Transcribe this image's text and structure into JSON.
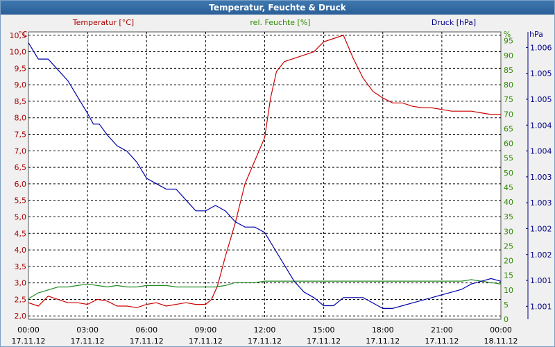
{
  "window": {
    "title": "Temperatur, Feuchte & Druck"
  },
  "chart_data": {
    "type": "line",
    "title": "Temperatur, Feuchte & Druck",
    "x_ticks": [
      {
        "time": "00:00",
        "date": "17.11.12",
        "hour": 0
      },
      {
        "time": "03:00",
        "date": "17.11.12",
        "hour": 3
      },
      {
        "time": "06:00",
        "date": "17.11.12",
        "hour": 6
      },
      {
        "time": "09:00",
        "date": "17.11.12",
        "hour": 9
      },
      {
        "time": "12:00",
        "date": "17.11.12",
        "hour": 12
      },
      {
        "time": "15:00",
        "date": "17.11.12",
        "hour": 15
      },
      {
        "time": "18:00",
        "date": "17.11.12",
        "hour": 18
      },
      {
        "time": "21:00",
        "date": "17.11.12",
        "hour": 21
      },
      {
        "time": "00:00",
        "date": "18.11.12",
        "hour": 24
      }
    ],
    "xlim": [
      0,
      24
    ],
    "axes": {
      "temperature": {
        "unit": "°C",
        "ylim": [
          1.9,
          10.6
        ],
        "color": "#aa0000",
        "ticks": [
          "2,0",
          "2,5",
          "3,0",
          "3,5",
          "4,0",
          "4,5",
          "5,0",
          "5,5",
          "6,0",
          "6,5",
          "7,0",
          "7,5",
          "8,0",
          "8,5",
          "9,0",
          "9,5",
          "10,0",
          "10,5"
        ]
      },
      "humidity": {
        "unit": "%",
        "ylim": [
          0,
          98
        ],
        "color": "#2e8b00",
        "ticks": [
          "0",
          "5",
          "10",
          "15",
          "20",
          "25",
          "30",
          "35",
          "40",
          "45",
          "50",
          "55",
          "60",
          "65",
          "70",
          "75",
          "80",
          "85",
          "90",
          "95"
        ]
      },
      "pressure": {
        "unit": "hPa",
        "ylim": [
          1000.9,
          1006.2
        ],
        "color": "#000088",
        "ticks": [
          "1.001",
          "1.001",
          "1.002",
          "1.002",
          "1.003",
          "1.003",
          "1.004",
          "1.004",
          "1.005",
          "1.005",
          "1.006"
        ]
      }
    },
    "legend": [
      "Temperatur [°C]",
      "rel. Feuchte [%]",
      "Druck [hPa]"
    ],
    "series": [
      {
        "name": "Temperatur [°C]",
        "axis": "temperature",
        "color": "#cc0000",
        "points": [
          [
            0,
            2.4
          ],
          [
            0.5,
            2.3
          ],
          [
            1,
            2.6
          ],
          [
            1.5,
            2.5
          ],
          [
            2,
            2.4
          ],
          [
            2.5,
            2.4
          ],
          [
            3,
            2.35
          ],
          [
            3.5,
            2.5
          ],
          [
            4,
            2.45
          ],
          [
            4.5,
            2.3
          ],
          [
            5,
            2.3
          ],
          [
            5.5,
            2.25
          ],
          [
            6,
            2.35
          ],
          [
            6.5,
            2.4
          ],
          [
            7,
            2.3
          ],
          [
            7.5,
            2.35
          ],
          [
            8,
            2.4
          ],
          [
            8.5,
            2.35
          ],
          [
            9,
            2.35
          ],
          [
            9.3,
            2.5
          ],
          [
            9.6,
            2.9
          ],
          [
            10,
            3.8
          ],
          [
            10.5,
            4.8
          ],
          [
            11,
            6.0
          ],
          [
            11.5,
            6.7
          ],
          [
            12,
            7.4
          ],
          [
            12.3,
            8.6
          ],
          [
            12.6,
            9.4
          ],
          [
            13,
            9.7
          ],
          [
            13.5,
            9.8
          ],
          [
            14,
            9.9
          ],
          [
            14.5,
            10.0
          ],
          [
            15,
            10.3
          ],
          [
            15.5,
            10.4
          ],
          [
            16,
            10.5
          ],
          [
            16.5,
            9.8
          ],
          [
            17,
            9.2
          ],
          [
            17.5,
            8.8
          ],
          [
            18,
            8.6
          ],
          [
            18.5,
            8.45
          ],
          [
            19,
            8.45
          ],
          [
            19.5,
            8.35
          ],
          [
            20,
            8.3
          ],
          [
            20.5,
            8.3
          ],
          [
            21,
            8.25
          ],
          [
            21.5,
            8.2
          ],
          [
            22,
            8.2
          ],
          [
            22.5,
            8.2
          ],
          [
            23,
            8.15
          ],
          [
            23.5,
            8.1
          ],
          [
            24,
            8.1
          ]
        ]
      },
      {
        "name": "rel. Feuchte [%]",
        "axis": "humidity",
        "color": "#228b22",
        "points": [
          [
            0,
            7
          ],
          [
            0.5,
            9
          ],
          [
            1,
            10
          ],
          [
            1.5,
            11
          ],
          [
            2,
            11
          ],
          [
            2.5,
            11.5
          ],
          [
            3,
            12
          ],
          [
            3.5,
            11.5
          ],
          [
            4,
            11
          ],
          [
            4.5,
            11.5
          ],
          [
            5,
            11
          ],
          [
            5.5,
            11
          ],
          [
            6,
            11.5
          ],
          [
            6.5,
            11.5
          ],
          [
            7,
            11.5
          ],
          [
            7.5,
            11
          ],
          [
            8,
            11
          ],
          [
            8.5,
            11
          ],
          [
            9,
            11
          ],
          [
            9.5,
            11
          ],
          [
            10,
            11.5
          ],
          [
            10.5,
            12.5
          ],
          [
            11,
            12.5
          ],
          [
            11.5,
            12.5
          ],
          [
            12,
            13
          ],
          [
            12.5,
            13
          ],
          [
            13,
            13
          ],
          [
            13.5,
            13
          ],
          [
            14,
            13
          ],
          [
            14.5,
            13
          ],
          [
            15,
            13
          ],
          [
            15.5,
            13
          ],
          [
            16,
            13
          ],
          [
            16.5,
            13
          ],
          [
            17,
            13
          ],
          [
            17.5,
            13
          ],
          [
            18,
            13
          ],
          [
            18.5,
            13
          ],
          [
            19,
            13
          ],
          [
            19.5,
            13
          ],
          [
            20,
            13
          ],
          [
            20.5,
            13
          ],
          [
            21,
            13
          ],
          [
            21.5,
            13
          ],
          [
            22,
            13
          ],
          [
            22.5,
            13.5
          ],
          [
            23,
            13
          ],
          [
            23.5,
            12.5
          ],
          [
            24,
            12
          ]
        ]
      },
      {
        "name": "Druck [hPa]",
        "axis": "pressure",
        "color": "#0000aa",
        "points": [
          [
            0,
            1006.0
          ],
          [
            0.5,
            1005.7
          ],
          [
            1,
            1005.7
          ],
          [
            1.5,
            1005.5
          ],
          [
            2,
            1005.3
          ],
          [
            2.5,
            1005.0
          ],
          [
            3,
            1004.7
          ],
          [
            3.3,
            1004.5
          ],
          [
            3.6,
            1004.5
          ],
          [
            4,
            1004.3
          ],
          [
            4.5,
            1004.1
          ],
          [
            5,
            1004.0
          ],
          [
            5.5,
            1003.8
          ],
          [
            6,
            1003.5
          ],
          [
            6.5,
            1003.4
          ],
          [
            7,
            1003.3
          ],
          [
            7.5,
            1003.3
          ],
          [
            8,
            1003.1
          ],
          [
            8.5,
            1002.9
          ],
          [
            9,
            1002.9
          ],
          [
            9.5,
            1003.0
          ],
          [
            10,
            1002.9
          ],
          [
            10.5,
            1002.7
          ],
          [
            11,
            1002.6
          ],
          [
            11.5,
            1002.6
          ],
          [
            12,
            1002.5
          ],
          [
            12.5,
            1002.2
          ],
          [
            13,
            1001.9
          ],
          [
            13.5,
            1001.6
          ],
          [
            14,
            1001.4
          ],
          [
            14.5,
            1001.3
          ],
          [
            15,
            1001.15
          ],
          [
            15.5,
            1001.15
          ],
          [
            16,
            1001.3
          ],
          [
            16.5,
            1001.3
          ],
          [
            17,
            1001.3
          ],
          [
            17.5,
            1001.2
          ],
          [
            18,
            1001.1
          ],
          [
            18.5,
            1001.1
          ],
          [
            19,
            1001.15
          ],
          [
            19.5,
            1001.2
          ],
          [
            20,
            1001.25
          ],
          [
            20.5,
            1001.3
          ],
          [
            21,
            1001.35
          ],
          [
            21.5,
            1001.4
          ],
          [
            22,
            1001.45
          ],
          [
            22.5,
            1001.55
          ],
          [
            23,
            1001.6
          ],
          [
            23.5,
            1001.65
          ],
          [
            24,
            1001.6
          ]
        ]
      }
    ]
  }
}
